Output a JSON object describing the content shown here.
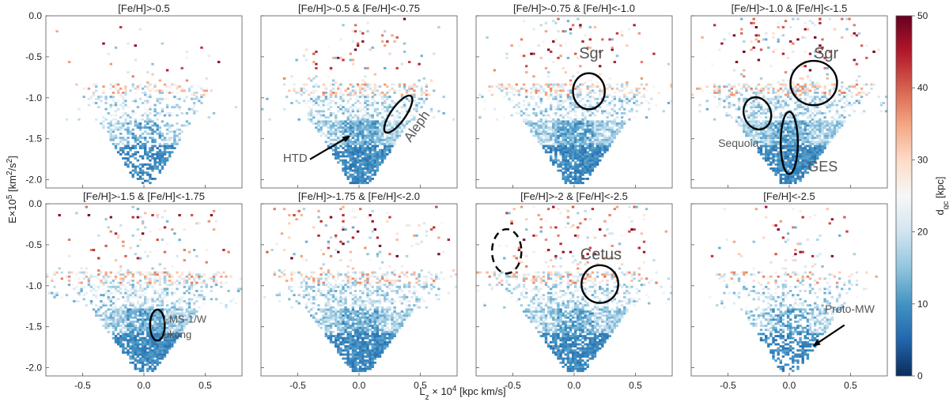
{
  "chart_data": {
    "type": "heatmap",
    "xlabel": "L_z × 10^4 [kpc km/s]",
    "ylabel": "E×10^5 [km^2/s^2]",
    "xlim": [
      -0.8,
      0.8
    ],
    "ylim": [
      -2.1,
      0.0
    ],
    "xticks": [
      "-0.5",
      "0.0",
      "0.5"
    ],
    "yticks": [
      "0.0",
      "-0.5",
      "-1.0",
      "-1.5",
      "-2.0"
    ],
    "colorbar": {
      "label": "d_gc [kpc]",
      "min": 0,
      "max": 50,
      "ticks": [
        "0",
        "10",
        "20",
        "30",
        "40",
        "50"
      ],
      "colormap": "RdBu_r",
      "stops": [
        "#0b2c5c",
        "#2166ac",
        "#4393c3",
        "#92c5de",
        "#d1e5f0",
        "#f7f7f7",
        "#fddbc7",
        "#f4a582",
        "#d6604d",
        "#b2182b",
        "#67001f"
      ]
    },
    "panels": [
      {
        "title": "[Fe/H]>-0.5",
        "density": 0.55,
        "spread": 0.35,
        "halo": 0.25,
        "annotations": []
      },
      {
        "title": "[Fe/H]>-0.5 & [Fe/H]<-0.75",
        "density": 0.85,
        "spread": 0.55,
        "halo": 0.5,
        "annotations": [
          {
            "text": "HTD",
            "x": -0.62,
            "y": -1.78,
            "size": 15,
            "rotate": 0
          },
          {
            "text": "Aleph",
            "x": 0.42,
            "y": -1.55,
            "size": 17,
            "rotate": -55
          }
        ],
        "ellipses": [
          {
            "cx": 0.32,
            "cy": -1.2,
            "rx": 0.06,
            "ry": 0.27,
            "rot": 35,
            "dashed": false
          }
        ],
        "arrows": [
          {
            "x1": -0.4,
            "y1": -1.75,
            "x2": -0.08,
            "y2": -1.47
          }
        ]
      },
      {
        "title": "[Fe/H]>-0.75 & [Fe/H]<-1.0",
        "density": 0.9,
        "spread": 0.7,
        "halo": 0.7,
        "annotations": [
          {
            "text": "Sgr",
            "x": 0.04,
            "y": -0.52,
            "size": 20,
            "rotate": 0
          }
        ],
        "ellipses": [
          {
            "cx": 0.12,
            "cy": -0.92,
            "rx": 0.13,
            "ry": 0.22,
            "rot": 0,
            "dashed": false
          }
        ]
      },
      {
        "title": "[Fe/H]>-1.0 & [Fe/H]<-1.5",
        "density": 0.95,
        "spread": 0.9,
        "halo": 1.0,
        "annotations": [
          {
            "text": "Sgr",
            "x": 0.2,
            "y": -0.52,
            "size": 20,
            "rotate": 0
          },
          {
            "text": "Sequoia",
            "x": -0.58,
            "y": -1.6,
            "size": 14,
            "rotate": 0
          },
          {
            "text": "GES",
            "x": 0.15,
            "y": -1.9,
            "size": 18,
            "rotate": 0
          }
        ],
        "ellipses": [
          {
            "cx": 0.2,
            "cy": -0.82,
            "rx": 0.19,
            "ry": 0.27,
            "rot": 0,
            "dashed": false
          },
          {
            "cx": -0.26,
            "cy": -1.19,
            "rx": 0.11,
            "ry": 0.2,
            "rot": -20,
            "dashed": false
          },
          {
            "cx": 0.0,
            "cy": -1.55,
            "rx": 0.07,
            "ry": 0.38,
            "rot": 0,
            "dashed": false
          }
        ]
      },
      {
        "title": "[Fe/H]>-1.5 & [Fe/H]<-1.75",
        "density": 0.9,
        "spread": 0.85,
        "halo": 1.0,
        "annotations": [
          {
            "text": "LMS-1/W",
            "x": 0.16,
            "y": -1.45,
            "size": 13,
            "rotate": 0
          },
          {
            "text": "ukong",
            "x": 0.16,
            "y": -1.64,
            "size": 13,
            "rotate": 0
          }
        ],
        "ellipses": [
          {
            "cx": 0.11,
            "cy": -1.48,
            "rx": 0.06,
            "ry": 0.19,
            "rot": 0,
            "dashed": false
          }
        ]
      },
      {
        "title": "[Fe/H]>-1.75 & [Fe/H]<-2.0",
        "density": 0.85,
        "spread": 0.85,
        "halo": 0.95,
        "annotations": []
      },
      {
        "title": "[Fe/H]>-2 & [Fe/H]<-2.5",
        "density": 0.8,
        "spread": 0.85,
        "halo": 1.0,
        "annotations": [
          {
            "text": "Cetus",
            "x": 0.05,
            "y": -0.68,
            "size": 20,
            "rotate": 0
          }
        ],
        "ellipses": [
          {
            "cx": 0.21,
            "cy": -0.98,
            "rx": 0.15,
            "ry": 0.23,
            "rot": 0,
            "dashed": false
          },
          {
            "cx": -0.55,
            "cy": -0.58,
            "rx": 0.12,
            "ry": 0.27,
            "rot": 0,
            "dashed": true
          }
        ]
      },
      {
        "title": "[Fe/H]<-2.5",
        "density": 0.55,
        "spread": 0.55,
        "halo": 0.5,
        "annotations": [
          {
            "text": "Proto-MW",
            "x": 0.29,
            "y": -1.33,
            "size": 14,
            "rotate": 0
          }
        ],
        "arrows": [
          {
            "x1": 0.45,
            "y1": -1.48,
            "x2": 0.2,
            "y2": -1.73
          }
        ]
      }
    ]
  }
}
